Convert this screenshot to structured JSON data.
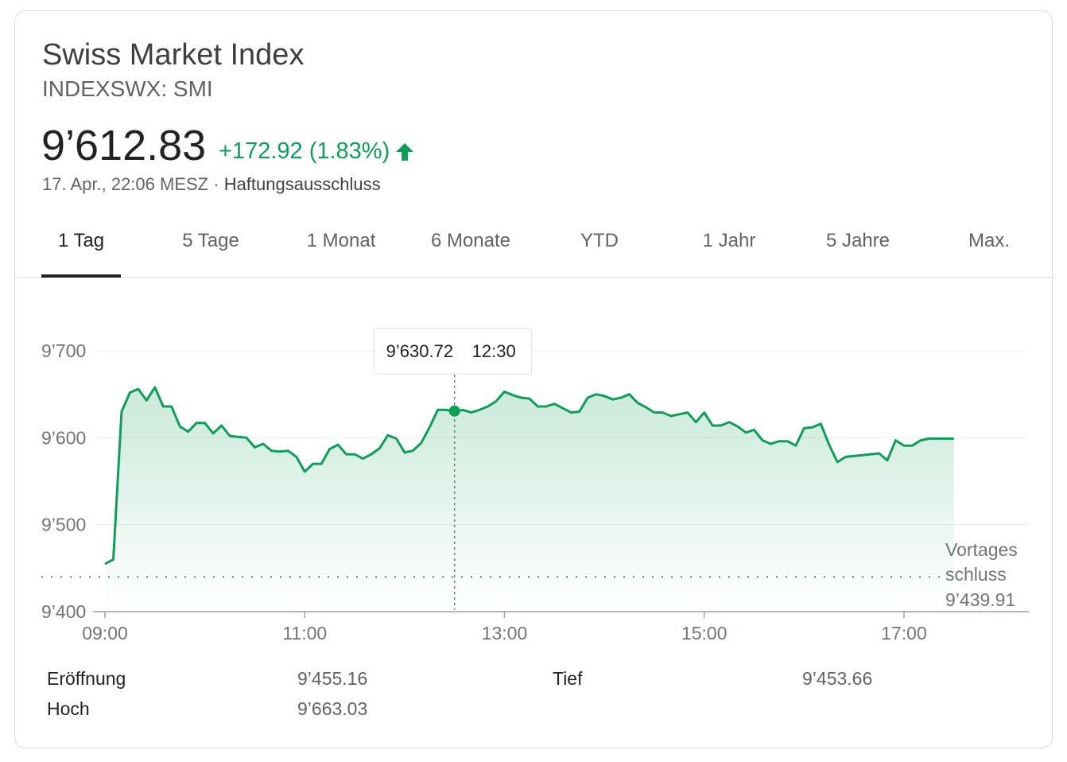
{
  "header": {
    "title": "Swiss Market Index",
    "ticker": "INDEXSWX: SMI",
    "price": "9’612.83",
    "change": "+172.92 (1.83%)",
    "timestamp": "17. Apr., 22:06 MESZ",
    "separator": " · ",
    "disclaimer": "Haftungsausschluss",
    "up_color": "#0f9d58"
  },
  "tabs": [
    {
      "label": "1 Tag",
      "active": true
    },
    {
      "label": "5 Tage",
      "active": false
    },
    {
      "label": "1 Monat",
      "active": false
    },
    {
      "label": "6 Monate",
      "active": false
    },
    {
      "label": "YTD",
      "active": false
    },
    {
      "label": "1 Jahr",
      "active": false
    },
    {
      "label": "5 Jahre",
      "active": false
    },
    {
      "label": "Max.",
      "active": false
    }
  ],
  "chart_data": {
    "type": "area",
    "ylim": [
      9400,
      9700
    ],
    "xlim": [
      "09:00",
      "18:15"
    ],
    "y_ticks": [
      9700,
      9600,
      9500,
      9400
    ],
    "y_tick_labels": [
      "9’700",
      "9’600",
      "9’500",
      "9’400"
    ],
    "x_ticks": [
      "09:00",
      "11:00",
      "13:00",
      "15:00",
      "17:00"
    ],
    "grid": true,
    "line_color": "#0f9d58",
    "previous_close": {
      "value": 9439.91,
      "label_line1": "Vortages",
      "label_line2": "schluss",
      "label_value": "9’439.91"
    },
    "tooltip": {
      "time": "12:30",
      "value": 9630.72,
      "value_label": "9’630.72"
    },
    "series": [
      {
        "x": [
          "09:00",
          "09:05",
          "09:10",
          "09:15",
          "09:20",
          "09:25",
          "09:30",
          "09:35",
          "09:40",
          "09:45",
          "09:50",
          "09:55",
          "10:00",
          "10:05",
          "10:10",
          "10:15",
          "10:20",
          "10:25",
          "10:30",
          "10:35",
          "10:40",
          "10:45",
          "10:50",
          "10:55",
          "11:00",
          "11:05",
          "11:10",
          "11:15",
          "11:20",
          "11:25",
          "11:30",
          "11:35",
          "11:40",
          "11:45",
          "11:50",
          "11:55",
          "12:00",
          "12:05",
          "12:10",
          "12:15",
          "12:20",
          "12:25",
          "12:30",
          "12:35",
          "12:40",
          "12:45",
          "12:50",
          "12:55",
          "13:00",
          "13:05",
          "13:10",
          "13:15",
          "13:20",
          "13:25",
          "13:30",
          "13:35",
          "13:40",
          "13:45",
          "13:50",
          "13:55",
          "14:00",
          "14:05",
          "14:10",
          "14:15",
          "14:20",
          "14:25",
          "14:30",
          "14:35",
          "14:40",
          "14:45",
          "14:50",
          "14:55",
          "15:00",
          "15:05",
          "15:10",
          "15:15",
          "15:20",
          "15:25",
          "15:30",
          "15:35",
          "15:40",
          "15:45",
          "15:50",
          "15:55",
          "16:00",
          "16:05",
          "16:10",
          "16:15",
          "16:20",
          "16:25",
          "16:30",
          "16:35",
          "16:40",
          "16:45",
          "16:50",
          "16:55",
          "17:00",
          "17:05",
          "17:10",
          "17:15",
          "17:20",
          "17:25",
          "17:30"
        ],
        "y": [
          9455,
          9460,
          9630,
          9652,
          9656,
          9643,
          9658,
          9636,
          9636,
          9613,
          9607,
          9617,
          9617,
          9605,
          9614,
          9602,
          9601,
          9600,
          9589,
          9593,
          9585,
          9584,
          9585,
          9578,
          9561,
          9570,
          9570,
          9587,
          9592,
          9581,
          9581,
          9576,
          9581,
          9588,
          9603,
          9599,
          9583,
          9585,
          9594,
          9612,
          9632,
          9632,
          9630,
          9632,
          9629,
          9632,
          9636,
          9642,
          9653,
          9649,
          9646,
          9645,
          9636,
          9636,
          9639,
          9634,
          9629,
          9630,
          9646,
          9650,
          9648,
          9644,
          9646,
          9650,
          9640,
          9635,
          9629,
          9629,
          9625,
          9627,
          9629,
          9618,
          9629,
          9614,
          9614,
          9618,
          9613,
          9606,
          9609,
          9597,
          9593,
          9596,
          9596,
          9591,
          9611,
          9612,
          9616,
          9592,
          9572,
          9578,
          9579,
          9580,
          9581,
          9582,
          9574,
          9597,
          9591,
          9591,
          9597,
          9599,
          9599,
          9599,
          9599
        ]
      }
    ]
  },
  "stats": [
    {
      "label": "Eröffnung",
      "value": "9’455.16"
    },
    {
      "label": "Hoch",
      "value": "9’663.03"
    },
    {
      "label": "Tief",
      "value": "9’453.66"
    }
  ]
}
